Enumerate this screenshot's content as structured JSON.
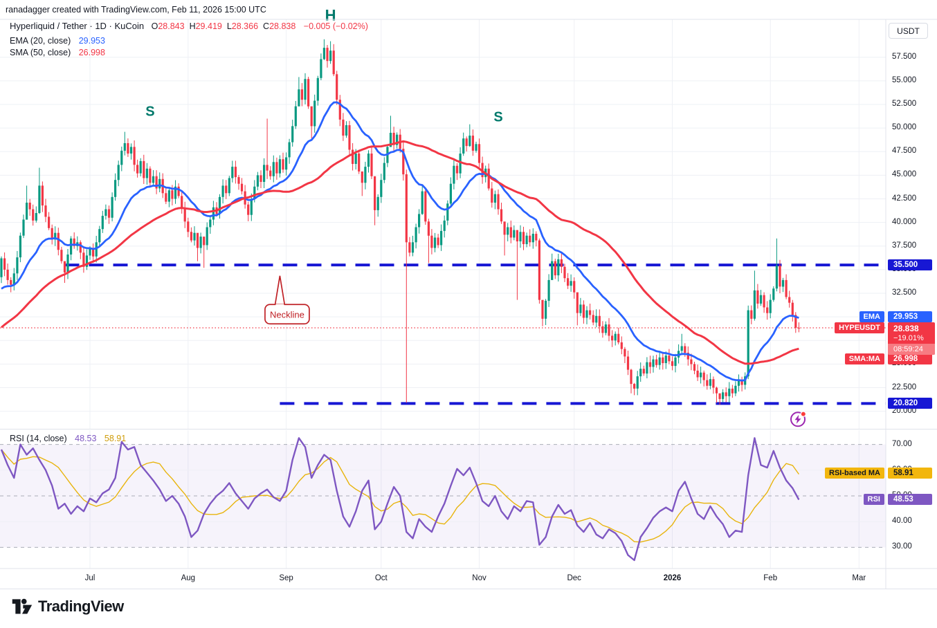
{
  "attribution": "ranadagger created with TradingView.com, Feb 11, 2026 15:00 UTC",
  "legend": {
    "symbol": "Hyperliquid / Tether · 1D · KuCoin",
    "ohlc": [
      {
        "k": "O",
        "v": "28.843"
      },
      {
        "k": "H",
        "v": "29.419"
      },
      {
        "k": "L",
        "v": "28.366"
      },
      {
        "k": "C",
        "v": "28.838"
      }
    ],
    "change": "−0.005 (−0.02%)",
    "ema": {
      "label": "EMA (20, close)",
      "value": "29.953"
    },
    "sma": {
      "label": "SMA (50, close)",
      "value": "26.998"
    },
    "rsi": {
      "label": "RSI (14, close)",
      "value": "48.53",
      "ma_value": "58.91"
    }
  },
  "axis": {
    "currency": "USDT",
    "price_ticks": [
      "57.500",
      "55.000",
      "52.500",
      "50.000",
      "47.500",
      "45.000",
      "42.500",
      "40.000",
      "37.500",
      "35.000",
      "32.500",
      "30.000",
      "27.500",
      "25.000",
      "22.500",
      "20.000"
    ],
    "rsi_ticks": [
      "70.00",
      "60.00",
      "50.00",
      "40.00",
      "30.00"
    ],
    "months": [
      {
        "label": "Jul",
        "day": 28
      },
      {
        "label": "Aug",
        "day": 59
      },
      {
        "label": "Sep",
        "day": 90
      },
      {
        "label": "Oct",
        "day": 120
      },
      {
        "label": "Nov",
        "day": 151
      },
      {
        "label": "Dec",
        "day": 181
      },
      {
        "label": "2026",
        "day": 212,
        "bold": true
      },
      {
        "label": "Feb",
        "day": 243
      },
      {
        "label": "Mar",
        "day": 271
      }
    ]
  },
  "labels": {
    "resistance": {
      "text": "35.500"
    },
    "support": {
      "text": "20.820"
    },
    "ema_tag": {
      "tag": "EMA",
      "value": "29.953"
    },
    "sma_tag": {
      "tag": "SMA:MA",
      "value": "26.998"
    },
    "price_tag": {
      "tag": "HYPEUSDT",
      "price": "28.838",
      "change": "−19.01%",
      "countdown": "08:59:24"
    },
    "rsi_ma_tag": {
      "tag": "RSI-based MA",
      "value": "58.91"
    },
    "rsi_tag": {
      "tag": "RSI",
      "value": "48.53"
    }
  },
  "annotations": {
    "s_left": {
      "text": "S",
      "day": 47,
      "price": 51.3
    },
    "head": {
      "text": "H",
      "day": 104,
      "price": 61.4
    },
    "s_right": {
      "text": "S",
      "day": 157,
      "price": 50.7
    },
    "callout": {
      "text": "Neckline",
      "anchor_day": 88,
      "anchor_price": 34.35
    },
    "flash_icon": {
      "day": 251.7,
      "price": 19.15
    }
  },
  "footer": {
    "logo_text": "TradingView"
  },
  "colors": {
    "up": "#089981",
    "down": "#f23645",
    "ema": "#2962ff",
    "sma": "#f23645",
    "rsi": "#7e57c2",
    "rsi_ma": "#e8b40c",
    "rsi_ma_bg": "#f2b60d",
    "level": "#1717d4",
    "teal": "#00796b",
    "callout": "#bf2025",
    "flash": "#9c27b0",
    "flash_dot": "#fb3b3b",
    "grid": "#eef0f5",
    "dashed_gray": "#9096a1",
    "band": "rgba(126,87,194,0.07)",
    "countdown_bg": "#f77b82",
    "separator": "#e0e3eb"
  },
  "chart_data": {
    "type": "candlestick",
    "title": "Hyperliquid / Tether 1D KuCoin with EMA(20), SMA(50), RSI(14) and head-and-shoulders annotation",
    "x_axis": "Time, daily candles from 2025-06-03 (index 0) to 2026-02-11 (index 252)",
    "y_axis": "Price in USDT, visible range ~19 to ~61",
    "ylim": [
      18.8,
      61.2
    ],
    "rsi_ylim_ticks": [
      30,
      40,
      50,
      60,
      70
    ],
    "grid": true,
    "legend_position": "top-left overlay",
    "current_price": 28.838,
    "levels": [
      {
        "label": "35.500",
        "price": 35.5,
        "start_day": 20,
        "style": "dashed-blue-resistance"
      },
      {
        "label": "20.820",
        "price": 20.82,
        "start_day": 88,
        "style": "dashed-blue-support"
      }
    ],
    "indicators": {
      "ema_period": 20,
      "sma_period": 50,
      "rsi_period": 14,
      "rsi_ma_period": 14,
      "ema_last": 29.953,
      "sma_last": 26.998,
      "rsi_last": 48.53,
      "rsi_ma_last": 58.91
    },
    "ohlc_last": {
      "o": 28.843,
      "h": 29.419,
      "l": 28.366,
      "c": 28.838,
      "change": -0.005,
      "change_pct": -0.02
    },
    "closes_pre": [
      20.3,
      20.8,
      21.4,
      21.0,
      21.9,
      22.6,
      22.2,
      23.0,
      23.7,
      23.3,
      24.2,
      24.9,
      24.5,
      25.3,
      26.0,
      25.6,
      26.4,
      27.1,
      26.7,
      27.5,
      28.2,
      27.8,
      28.6,
      29.3,
      28.9,
      29.7,
      30.4,
      30.0,
      29.5,
      30.2,
      30.8,
      30.4,
      31.1,
      31.7,
      31.3,
      32.0,
      32.6,
      32.2,
      32.9,
      33.4,
      33.0,
      33.6,
      34.1,
      33.7,
      34.3,
      33.9,
      34.4,
      34.0,
      33.6,
      34.2
    ],
    "closes": [
      36.2,
      35.0,
      33.9,
      33.4,
      34.6,
      36.3,
      38.6,
      40.3,
      42.1,
      41.4,
      40.2,
      41.0,
      43.9,
      41.8,
      40.6,
      39.4,
      38.2,
      38.9,
      37.1,
      35.9,
      34.7,
      36.6,
      38.3,
      37.5,
      37.9,
      36.8,
      35.3,
      36.5,
      37.2,
      36.4,
      37.9,
      39.3,
      40.7,
      41.4,
      40.5,
      42.7,
      44.5,
      46.1,
      47.6,
      48.4,
      47.3,
      48.0,
      46.1,
      45.2,
      46.5,
      44.7,
      45.7,
      44.2,
      44.9,
      43.6,
      44.6,
      43.1,
      42.2,
      43.4,
      42.5,
      43.8,
      42.8,
      41.5,
      40.1,
      39.0,
      38.1,
      38.9,
      37.3,
      38.5,
      37.6,
      39.5,
      40.3,
      41.6,
      40.9,
      42.7,
      43.9,
      43.1,
      44.7,
      45.9,
      44.8,
      44.1,
      43.3,
      41.9,
      40.8,
      42.5,
      43.8,
      45.0,
      44.3,
      46.1,
      45.5,
      44.9,
      46.4,
      45.2,
      46.7,
      45.6,
      46.9,
      48.5,
      50.2,
      52.3,
      54.1,
      53.0,
      55.2,
      52.3,
      50.2,
      52.9,
      55.3,
      57.3,
      58.5,
      57.1,
      58.2,
      55.7,
      53.0,
      50.9,
      49.2,
      50.3,
      47.7,
      46.2,
      47.3,
      45.4,
      44.2,
      45.9,
      47.3,
      44.9,
      41.3,
      42.7,
      44.5,
      46.3,
      48.0,
      49.5,
      48.2,
      49.3,
      47.8,
      45.1,
      37.9,
      36.8,
      37.9,
      39.5,
      40.9,
      43.3,
      40.1,
      38.6,
      37.3,
      38.4,
      37.6,
      39.1,
      40.2,
      42.0,
      44.1,
      46.0,
      45.2,
      47.3,
      48.9,
      48.1,
      49.2,
      47.6,
      48.3,
      46.3,
      44.8,
      45.7,
      43.6,
      42.1,
      43.0,
      41.4,
      40.1,
      38.7,
      39.5,
      38.4,
      39.2,
      38.0,
      39.0,
      37.7,
      38.6,
      37.9,
      38.8,
      38.1,
      31.8,
      29.8,
      31.7,
      33.9,
      35.9,
      34.4,
      36.1,
      35.3,
      34.1,
      33.3,
      33.8,
      32.6,
      30.4,
      31.3,
      29.9,
      30.7,
      30.2,
      29.4,
      30.1,
      29.0,
      28.3,
      29.2,
      28.0,
      27.5,
      28.2,
      27.3,
      26.6,
      25.8,
      24.4,
      22.9,
      22.4,
      23.7,
      24.5,
      24.0,
      25.2,
      24.7,
      25.5,
      24.9,
      25.7,
      25.1,
      25.9,
      25.3,
      24.8,
      25.7,
      26.4,
      26.9,
      26.2,
      25.5,
      25.0,
      24.3,
      23.6,
      24.1,
      23.3,
      22.7,
      23.4,
      22.5,
      21.9,
      21.3,
      22.0,
      21.6,
      22.4,
      21.9,
      22.7,
      23.2,
      22.8,
      23.7,
      30.7,
      29.8,
      32.8,
      31.4,
      32.3,
      31.0,
      30.4,
      31.8,
      33.0,
      35.4,
      33.2,
      33.9,
      32.1,
      31.5,
      30.2,
      28.843,
      28.838
    ],
    "wick_overrides": {
      "3": [
        34.2,
        32.6
      ],
      "8": [
        43.9,
        41.2
      ],
      "12": [
        45.8,
        40.9
      ],
      "20": [
        35.8,
        33.6
      ],
      "33": [
        41.9,
        40.3
      ],
      "39": [
        49.6,
        47.1
      ],
      "50": [
        45.3,
        43.2
      ],
      "62": [
        38.0,
        35.9
      ],
      "64": [
        38.3,
        35.2
      ],
      "84": [
        51.0,
        44.6
      ],
      "94": [
        55.4,
        52.7
      ],
      "98": [
        50.8,
        48.9
      ],
      "102": [
        59.4,
        57.2
      ],
      "104": [
        59.2,
        56.8
      ],
      "114": [
        45.1,
        42.8
      ],
      "118": [
        42.8,
        39.7
      ],
      "123": [
        51.3,
        48.1
      ],
      "128": [
        45.6,
        20.9
      ],
      "133": [
        43.9,
        40.8
      ],
      "135": [
        40.4,
        35.7
      ],
      "148": [
        50.4,
        48.0
      ],
      "159": [
        40.0,
        36.5
      ],
      "163": [
        38.9,
        31.8
      ],
      "170": [
        38.3,
        31.4
      ],
      "171": [
        30.9,
        29.0
      ],
      "174": [
        36.7,
        34.3
      ],
      "182": [
        31.5,
        29.1
      ],
      "188": [
        30.8,
        28.9
      ],
      "199": [
        24.5,
        21.9
      ],
      "200": [
        23.0,
        21.7
      ],
      "215": [
        28.2,
        26.0
      ],
      "226": [
        22.6,
        20.9
      ],
      "227": [
        21.9,
        20.7
      ],
      "236": [
        31.2,
        23.4
      ],
      "238": [
        34.9,
        29.6
      ],
      "245": [
        38.3,
        32.7
      ],
      "251": [
        30.5,
        28.3
      ],
      "252": [
        29.419,
        28.366
      ]
    },
    "rsi_sample_step_days": 2,
    "rsi": [
      68,
      62,
      57,
      70,
      66,
      68.5,
      64,
      60,
      54,
      45,
      47,
      43,
      46,
      44,
      49,
      47.5,
      51,
      52.5,
      57,
      71,
      68,
      69,
      62,
      59,
      56,
      52.5,
      48,
      50,
      47,
      42,
      34,
      36.5,
      43,
      47,
      50,
      52,
      55,
      51,
      48,
      45,
      49,
      51,
      52.5,
      49.5,
      48,
      52,
      64,
      72.5,
      69,
      57,
      62,
      66,
      64,
      52,
      42,
      38,
      44,
      52,
      56,
      37,
      40,
      47,
      53.5,
      50,
      36,
      33.5,
      41,
      38,
      36,
      42,
      47,
      54,
      60.5,
      58,
      61,
      55,
      48,
      46,
      50,
      44,
      41,
      46,
      44,
      48,
      47.5,
      31,
      34,
      42,
      46.5,
      43,
      44.5,
      38.5,
      36,
      39.5,
      35,
      33.5,
      37,
      35.5,
      32.5,
      27,
      25,
      34,
      37.5,
      41.5,
      44,
      45.5,
      44,
      52,
      55.5,
      49,
      43,
      41,
      46,
      42,
      39,
      34,
      36.5,
      36,
      58,
      72.5,
      62,
      61,
      67.5,
      61,
      56,
      53,
      48.53
    ]
  }
}
